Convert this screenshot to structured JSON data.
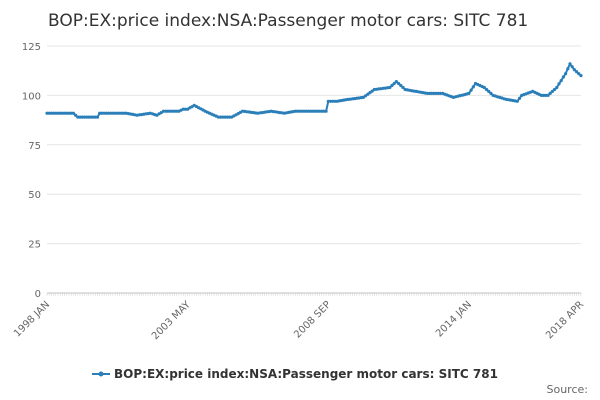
{
  "chart_data": {
    "type": "line",
    "title": "BOP:EX:price index:NSA:Passenger motor cars: SITC 781",
    "xlabel": "",
    "ylabel": "",
    "ylim": [
      0,
      125
    ],
    "yticks": [
      0,
      25,
      50,
      75,
      100,
      125
    ],
    "xtick_labels": [
      "1998 JAN",
      "2003 MAY",
      "2008 SEP",
      "2014 JAN",
      "2018 APR"
    ],
    "grid": true,
    "legend_position": "bottom-center",
    "series": [
      {
        "name": "BOP:EX:price index:NSA:Passenger motor cars: SITC 781",
        "color": "#2b7fb9",
        "points": [
          [
            "1998 JAN",
            91
          ],
          [
            "1999 JAN",
            91
          ],
          [
            "1999 MAR",
            89
          ],
          [
            "1999 DEC",
            89
          ],
          [
            "2000 JAN",
            91
          ],
          [
            "2001 JAN",
            91
          ],
          [
            "2001 JUN",
            90
          ],
          [
            "2001 DEC",
            91
          ],
          [
            "2002 MAR",
            90
          ],
          [
            "2002 JUN",
            92
          ],
          [
            "2003 JAN",
            92
          ],
          [
            "2003 MAR",
            93
          ],
          [
            "2003 MAY",
            93
          ],
          [
            "2003 AUG",
            95
          ],
          [
            "2004 JAN",
            92
          ],
          [
            "2004 JUL",
            89
          ],
          [
            "2005 JAN",
            89
          ],
          [
            "2005 JUN",
            92
          ],
          [
            "2006 JAN",
            91
          ],
          [
            "2006 JUL",
            92
          ],
          [
            "2007 JAN",
            91
          ],
          [
            "2007 JUN",
            92
          ],
          [
            "2008 MAR",
            92
          ],
          [
            "2008 AUG",
            92
          ],
          [
            "2008 SEP",
            97
          ],
          [
            "2009 JAN",
            97
          ],
          [
            "2009 JUN",
            98
          ],
          [
            "2010 JAN",
            99
          ],
          [
            "2010 JUN",
            103
          ],
          [
            "2011 JAN",
            104
          ],
          [
            "2011 APR",
            107
          ],
          [
            "2011 AUG",
            103
          ],
          [
            "2012 JAN",
            102
          ],
          [
            "2012 JUN",
            101
          ],
          [
            "2013 JAN",
            101
          ],
          [
            "2013 JUN",
            99
          ],
          [
            "2014 JAN",
            101
          ],
          [
            "2014 APR",
            106
          ],
          [
            "2014 AUG",
            104
          ],
          [
            "2014 DEC",
            100
          ],
          [
            "2015 JUN",
            98
          ],
          [
            "2015 NOV",
            97
          ],
          [
            "2016 JAN",
            100
          ],
          [
            "2016 JUN",
            102
          ],
          [
            "2016 OCT",
            100
          ],
          [
            "2017 JAN",
            100
          ],
          [
            "2017 MAY",
            104
          ],
          [
            "2017 SEP",
            111
          ],
          [
            "2017 NOV",
            116
          ],
          [
            "2018 JAN",
            113
          ],
          [
            "2018 FEB",
            112
          ],
          [
            "2018 MAR",
            111
          ],
          [
            "2018 APR",
            110
          ]
        ]
      }
    ]
  },
  "footer": {
    "credit": "Source:"
  }
}
